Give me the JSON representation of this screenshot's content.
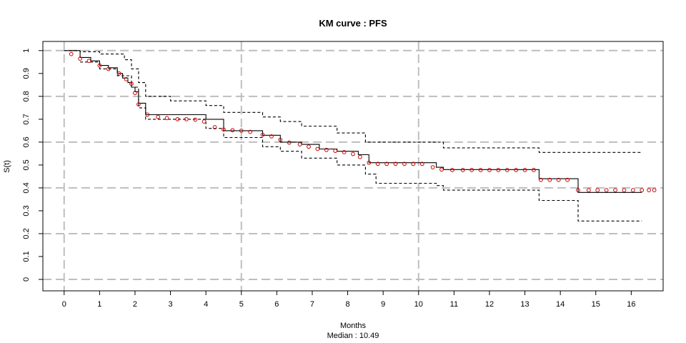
{
  "chart_data": {
    "type": "line",
    "title": "KM curve : PFS",
    "xlabel": "Months",
    "subtitle": "Median : 10.49",
    "ylabel": "S(t)",
    "xlim": [
      -0.6,
      16.9
    ],
    "ylim": [
      -0.05,
      1.04
    ],
    "x_ticks": [
      0,
      1,
      2,
      3,
      4,
      5,
      6,
      7,
      8,
      9,
      10,
      11,
      12,
      13,
      14,
      15,
      16
    ],
    "y_ticks": [
      0,
      0.1,
      0.2,
      0.3,
      0.4,
      0.5,
      0.6,
      0.7,
      0.8,
      0.9,
      1
    ],
    "grid": true,
    "grid_x": [
      0,
      5,
      10
    ],
    "grid_y": [
      0,
      0.2,
      0.4,
      0.6,
      0.8,
      1
    ],
    "series": [
      {
        "style": "step",
        "color": "#000000",
        "x": [
          0,
          0.45,
          0.75,
          1.0,
          1.25,
          1.5,
          1.65,
          1.8,
          1.9,
          2.0,
          2.1,
          2.3,
          4.0,
          4.5,
          5.6,
          6.1,
          6.7,
          7.2,
          7.7,
          8.3,
          8.6,
          10.5,
          10.7,
          13.4,
          14.5,
          16.3
        ],
        "y": [
          1.0,
          0.97,
          0.955,
          0.935,
          0.925,
          0.9,
          0.88,
          0.86,
          0.84,
          0.82,
          0.77,
          0.72,
          0.7,
          0.65,
          0.63,
          0.6,
          0.59,
          0.57,
          0.56,
          0.545,
          0.51,
          0.49,
          0.48,
          0.44,
          0.38,
          0.38
        ]
      },
      {
        "style": "step-dashed",
        "color": "#000000",
        "x": [
          0,
          0.45,
          1.0,
          1.7,
          1.9,
          2.1,
          2.3,
          3.0,
          4.0,
          4.5,
          5.6,
          6.1,
          6.7,
          7.7,
          8.5,
          10.7,
          13.4,
          14.5,
          16.3
        ],
        "y": [
          1.0,
          0.995,
          0.985,
          0.96,
          0.92,
          0.86,
          0.8,
          0.78,
          0.76,
          0.73,
          0.71,
          0.69,
          0.67,
          0.64,
          0.6,
          0.575,
          0.555,
          0.555,
          0.555
        ]
      },
      {
        "style": "step-dashed",
        "color": "#000000",
        "x": [
          0.45,
          1.0,
          1.5,
          1.9,
          2.1,
          2.3,
          4.0,
          4.5,
          5.6,
          6.1,
          6.7,
          7.7,
          8.5,
          8.8,
          10.5,
          10.7,
          13.4,
          14.5,
          16.3
        ],
        "y": [
          0.95,
          0.92,
          0.89,
          0.84,
          0.75,
          0.7,
          0.66,
          0.62,
          0.58,
          0.56,
          0.53,
          0.5,
          0.46,
          0.42,
          0.41,
          0.39,
          0.345,
          0.255,
          0.255
        ]
      },
      {
        "style": "points",
        "color": "#cc0000",
        "x": [
          0.2,
          0.45,
          0.7,
          1.0,
          1.25,
          1.55,
          1.75,
          1.9,
          2.0,
          2.1,
          2.35,
          2.65,
          2.9,
          3.2,
          3.45,
          3.7,
          3.95,
          4.25,
          4.5,
          4.75,
          5.0,
          5.25,
          5.6,
          5.85,
          6.1,
          6.35,
          6.65,
          6.9,
          7.15,
          7.4,
          7.65,
          7.9,
          8.15,
          8.35,
          8.6,
          8.85,
          9.1,
          9.35,
          9.6,
          9.85,
          10.1,
          10.4,
          10.65,
          10.95,
          11.25,
          11.5,
          11.75,
          12.0,
          12.25,
          12.5,
          12.75,
          13.0,
          13.25,
          13.45,
          13.7,
          13.95,
          14.2,
          14.5,
          14.8,
          15.05,
          15.3,
          15.55,
          15.8,
          16.05,
          16.3,
          16.5,
          16.65
        ],
        "y": [
          0.985,
          0.965,
          0.955,
          0.935,
          0.92,
          0.9,
          0.875,
          0.855,
          0.815,
          0.765,
          0.72,
          0.71,
          0.705,
          0.7,
          0.7,
          0.698,
          0.69,
          0.665,
          0.655,
          0.652,
          0.65,
          0.645,
          0.632,
          0.625,
          0.61,
          0.598,
          0.59,
          0.58,
          0.57,
          0.566,
          0.562,
          0.556,
          0.548,
          0.535,
          0.51,
          0.505,
          0.505,
          0.505,
          0.505,
          0.505,
          0.505,
          0.49,
          0.48,
          0.478,
          0.478,
          0.478,
          0.478,
          0.478,
          0.478,
          0.478,
          0.478,
          0.478,
          0.478,
          0.435,
          0.435,
          0.435,
          0.435,
          0.39,
          0.39,
          0.39,
          0.39,
          0.39,
          0.39,
          0.39,
          0.39,
          0.39,
          0.39
        ]
      }
    ]
  }
}
